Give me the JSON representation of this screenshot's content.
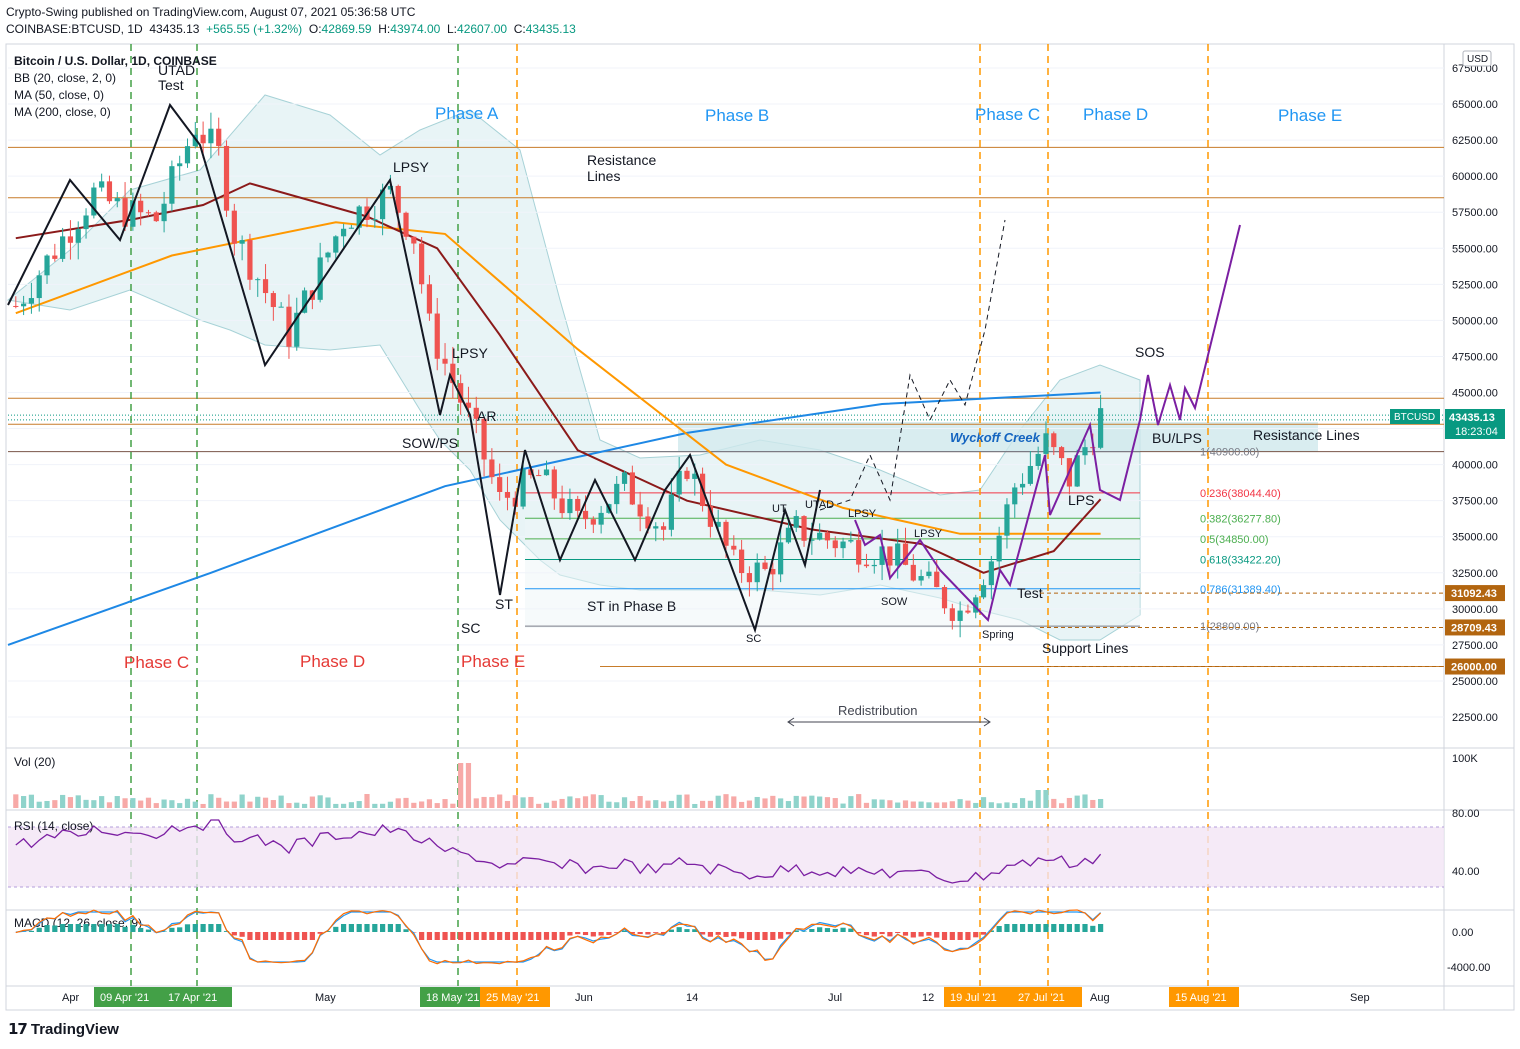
{
  "header": {
    "line1": "Crypto-Swing published on TradingView.com, August 07, 2021 05:36:58 UTC",
    "symbol": "COINBASE:BTCUSD, 1D",
    "last": "43435.13",
    "change": "+565.55 (+1.32%)",
    "o_label": "O:",
    "o": "42869.59",
    "h_label": "H:",
    "h": "43974.00",
    "l_label": "L:",
    "l": "42607.00",
    "c_label": "C:",
    "c": "43435.13"
  },
  "legend": {
    "title": "Bitcoin / U.S. Dollar, 1D, COINBASE",
    "bb": "BB (20, close, 2, 0)",
    "ma50": "MA (50, close, 0)",
    "ma200": "MA (200, close, 0)"
  },
  "price_axis": {
    "currency": "USD",
    "ticks": [
      "67500.00",
      "65000.00",
      "62500.00",
      "60000.00",
      "57500.00",
      "55000.00",
      "52500.00",
      "50000.00",
      "47500.00",
      "45000.00",
      "42500.00",
      "40000.00",
      "37500.00",
      "35000.00",
      "32500.00",
      "30000.00",
      "27500.00",
      "25000.00",
      "22500.00"
    ],
    "tick_values": [
      67500,
      65000,
      62500,
      60000,
      57500,
      55000,
      52500,
      50000,
      47500,
      45000,
      42500,
      40000,
      37500,
      35000,
      32500,
      30000,
      27500,
      25000,
      22500
    ],
    "current_symbol": "BTCUSD",
    "current_price": "43435.13",
    "current_value": 43435.13,
    "countdown": "18:23:04",
    "markers": [
      {
        "label": "31092.43",
        "value": 31092.43
      },
      {
        "label": "28709.43",
        "value": 28709.43
      },
      {
        "label": "26000.00",
        "value": 26000
      }
    ]
  },
  "time_axis": {
    "labels": [
      "Apr",
      "May",
      "Jun",
      "14",
      "Jul",
      "12",
      "Aug",
      "Sep"
    ],
    "highlights": [
      {
        "label": "09 Apr '21",
        "color": "#43a047"
      },
      {
        "label": "17 Apr '21",
        "color": "#43a047"
      },
      {
        "label": "18 May '21",
        "color": "#43a047"
      },
      {
        "label": "25 May '21",
        "color": "#ff9800"
      },
      {
        "label": "19 Jul '21",
        "color": "#ff9800"
      },
      {
        "label": "27 Jul '21",
        "color": "#ff9800"
      },
      {
        "label": "15 Aug '21",
        "color": "#ff9800"
      }
    ]
  },
  "annotations": {
    "phases_top": [
      "Phase A",
      "Phase B",
      "Phase C",
      "Phase D",
      "Phase E"
    ],
    "phases_bottom": [
      "Phase C",
      "Phase D",
      "Phase E"
    ],
    "utad_test": [
      "UTAD",
      "Test"
    ],
    "resistance_top": [
      "Resistance",
      "Lines"
    ],
    "resistance_right": "Resistance Lines",
    "support": "Support Lines",
    "wyckoff": "Wyckoff Creek",
    "redistribution": "Redistribution",
    "labels": [
      "LPSY",
      "LPSY",
      "AR",
      "SOW/PS",
      "ST",
      "SC",
      "ST in Phase B",
      "SC",
      "UT",
      "UTAD",
      "LPSY",
      "LPSY",
      "SOW",
      "Spring",
      "Test",
      "LPS",
      "BU/LPS",
      "SOS"
    ]
  },
  "fib_levels": [
    {
      "label": "1(40900.00)",
      "value": 40900,
      "color": "#787b86"
    },
    {
      "label": "0.236(38044.40)",
      "value": 38044.4,
      "color": "#f23645"
    },
    {
      "label": "0.382(36277.80)",
      "value": 36277.8,
      "color": "#4caf50"
    },
    {
      "label": "0.5(34850.00)",
      "value": 34850,
      "color": "#4caf50"
    },
    {
      "label": "0.618(33422.20)",
      "value": 33422.2,
      "color": "#089981"
    },
    {
      "label": "0.786(31389.40)",
      "value": 31389.4,
      "color": "#2196f3"
    },
    {
      "label": "1(28800.00)",
      "value": 28800,
      "color": "#787b86"
    }
  ],
  "volume": {
    "label": "Vol (20)",
    "axis": "100K"
  },
  "rsi": {
    "label": "RSI (14, close)",
    "upper": "80.00",
    "lower": "40.00"
  },
  "macd": {
    "label": "MACD (12, 26, close, 9)",
    "zero": "0.00",
    "low": "-4000.00"
  },
  "brand": {
    "name": "TradingView"
  },
  "colors": {
    "up": "#26a69a",
    "down": "#ef5350",
    "ma50": "#8b1a1a",
    "ma200": "#ff9800",
    "proj": "#1e88e5",
    "phase_blue": "#2196f3",
    "phase_red": "#e53935",
    "purple": "#7b1fa2"
  },
  "chart_data": {
    "type": "candlestick",
    "title": "Bitcoin / U.S. Dollar, 1D, COINBASE",
    "ylim": [
      21000,
      69000
    ],
    "x_range": [
      "2021-03-20",
      "2021-09-20"
    ],
    "horizontal_lines": [
      62000,
      58500,
      44600,
      42800,
      40900,
      26000
    ],
    "candle_anchors": [
      [
        "2021-03-21",
        51000
      ],
      [
        "2021-03-31",
        58800
      ],
      [
        "2021-04-04",
        57500
      ],
      [
        "2021-04-08",
        57000
      ],
      [
        "2021-04-13",
        63500
      ],
      [
        "2021-04-16",
        61500
      ],
      [
        "2021-04-18",
        56000
      ],
      [
        "2021-04-25",
        49000
      ],
      [
        "2021-05-02",
        57000
      ],
      [
        "2021-05-08",
        58800
      ],
      [
        "2021-05-11",
        55800
      ],
      [
        "2021-05-13",
        49500
      ],
      [
        "2021-05-19",
        42000
      ],
      [
        "2021-05-22",
        37500
      ],
      [
        "2021-05-25",
        38500
      ],
      [
        "2021-05-27",
        39200
      ],
      [
        "2021-06-01",
        36000
      ],
      [
        "2021-06-07",
        38500
      ],
      [
        "2021-06-12",
        35500
      ],
      [
        "2021-06-15",
        40000
      ],
      [
        "2021-06-21",
        33000
      ],
      [
        "2021-06-25",
        32500
      ],
      [
        "2021-06-29",
        35500
      ],
      [
        "2021-07-05",
        34500
      ],
      [
        "2021-07-11",
        33800
      ],
      [
        "2021-07-16",
        31500
      ],
      [
        "2021-07-20",
        29800
      ],
      [
        "2021-07-24",
        33500
      ],
      [
        "2021-07-27",
        38500
      ],
      [
        "2021-07-31",
        41500
      ],
      [
        "2021-08-03",
        39000
      ],
      [
        "2021-08-07",
        43435
      ]
    ],
    "ma50": [
      [
        "2021-03-21",
        55700
      ],
      [
        "2021-04-05",
        57000
      ],
      [
        "2021-04-14",
        58000
      ],
      [
        "2021-04-20",
        59500
      ],
      [
        "2021-05-05",
        57200
      ],
      [
        "2021-05-14",
        55000
      ],
      [
        "2021-05-22",
        49000
      ],
      [
        "2021-06-01",
        41000
      ],
      [
        "2021-06-15",
        37500
      ],
      [
        "2021-07-01",
        35500
      ],
      [
        "2021-07-15",
        34500
      ],
      [
        "2021-07-23",
        32500
      ],
      [
        "2021-08-01",
        34000
      ],
      [
        "2021-08-07",
        37600
      ]
    ],
    "ma200": [
      [
        "2021-03-21",
        50500
      ],
      [
        "2021-04-10",
        54500
      ],
      [
        "2021-05-01",
        56800
      ],
      [
        "2021-05-15",
        56000
      ],
      [
        "2021-06-01",
        48000
      ],
      [
        "2021-06-20",
        40000
      ],
      [
        "2021-07-05",
        37000
      ],
      [
        "2021-07-20",
        35200
      ],
      [
        "2021-08-07",
        35200
      ]
    ],
    "projection": [
      [
        "2021-03-20",
        27500
      ],
      [
        "2021-04-15",
        32500
      ],
      [
        "2021-05-15",
        38500
      ],
      [
        "2021-06-15",
        42200
      ],
      [
        "2021-07-10",
        44200
      ],
      [
        "2021-08-07",
        45000
      ]
    ]
  }
}
